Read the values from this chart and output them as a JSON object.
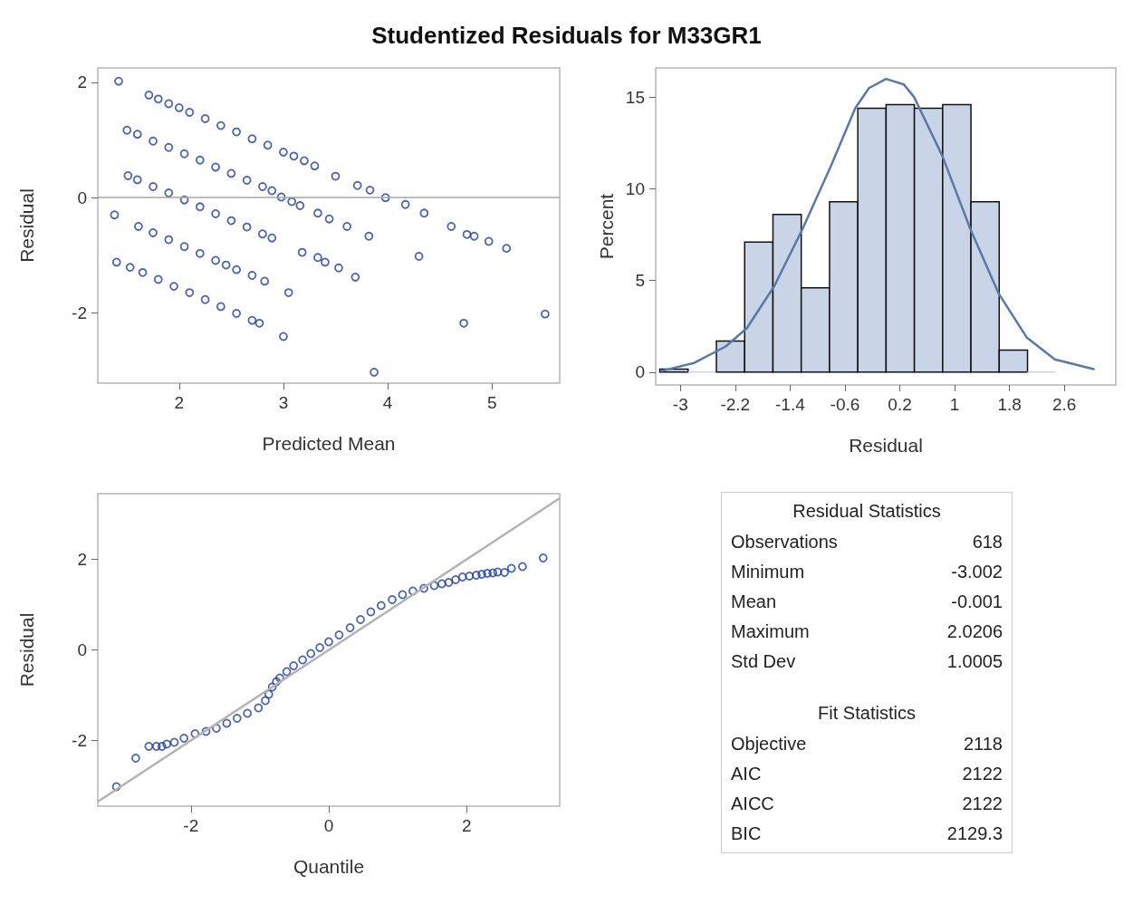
{
  "chart_data": [
    {
      "type": "scatter",
      "title": "Studentized Residuals for M33GR1",
      "xlabel": "Predicted Mean",
      "ylabel": "Residual",
      "color": "#1f3f9a",
      "marker": "circle",
      "grid": false,
      "xlim": [
        1.22,
        5.65
      ],
      "ylim": [
        -3.22,
        2.25
      ],
      "xticks": [
        2,
        3,
        4,
        5
      ],
      "yticks": [
        -2,
        0,
        2
      ],
      "ref_lines": [
        {
          "axis": "y",
          "value": 0,
          "color": "#a6a6a6"
        }
      ],
      "x": [
        1.42,
        1.71,
        1.8,
        1.9,
        2.0,
        2.1,
        2.25,
        2.4,
        2.55,
        2.7,
        2.85,
        3.0,
        3.1,
        3.2,
        3.3,
        3.5,
        3.71,
        3.83,
        3.98,
        4.17,
        4.35,
        4.61,
        4.76,
        4.83,
        4.97,
        5.14,
        1.5,
        1.6,
        1.75,
        1.9,
        2.05,
        2.2,
        2.35,
        2.5,
        2.65,
        2.8,
        2.89,
        2.98,
        3.08,
        3.16,
        3.33,
        3.44,
        3.61,
        3.82,
        4.3,
        1.51,
        1.6,
        1.75,
        1.9,
        2.05,
        2.2,
        2.35,
        2.5,
        2.65,
        2.8,
        2.89,
        3.18,
        3.33,
        3.4,
        3.53,
        3.69,
        4.73,
        5.51,
        3.87,
        1.61,
        1.75,
        1.9,
        2.05,
        2.2,
        2.35,
        2.45,
        2.55,
        2.7,
        2.82,
        3.05,
        1.4,
        1.53,
        1.65,
        1.8,
        1.95,
        2.1,
        2.25,
        2.4,
        2.55,
        2.7,
        2.77,
        3.0,
        1.38
      ],
      "values": [
        2.02,
        1.78,
        1.71,
        1.63,
        1.56,
        1.48,
        1.37,
        1.25,
        1.14,
        1.02,
        0.91,
        0.79,
        0.72,
        0.64,
        0.55,
        0.37,
        0.21,
        0.13,
        0,
        -0.12,
        -0.27,
        -0.5,
        -0.64,
        -0.67,
        -0.76,
        -0.88,
        1.17,
        1.1,
        0.98,
        0.87,
        0.76,
        0.65,
        0.53,
        0.42,
        0.3,
        0.19,
        0.12,
        0.01,
        -0.07,
        -0.14,
        -0.27,
        -0.37,
        -0.5,
        -0.67,
        -1.02,
        0.38,
        0.31,
        0.19,
        0.08,
        -0.04,
        -0.16,
        -0.28,
        -0.4,
        -0.51,
        -0.63,
        -0.7,
        -0.95,
        -1.04,
        -1.12,
        -1.22,
        -1.38,
        -2.18,
        -2.02,
        -3.03,
        -0.5,
        -0.61,
        -0.73,
        -0.85,
        -0.97,
        -1.09,
        -1.17,
        -1.25,
        -1.35,
        -1.45,
        -1.65,
        -1.12,
        -1.21,
        -1.3,
        -1.42,
        -1.54,
        -1.65,
        -1.77,
        -1.89,
        -2.01,
        -2.13,
        -2.18,
        -2.41,
        -0.3
      ]
    },
    {
      "type": "histogram",
      "xlabel": "Residual",
      "ylabel": "Percent",
      "color": "#c9d4e6",
      "grid": false,
      "xlim": [
        -3.36,
        3.35
      ],
      "ylim": [
        -0.7,
        16.6
      ],
      "xticks": [
        -3,
        -2.2,
        -1.4,
        -0.6,
        0.2,
        1,
        1.8,
        2.6
      ],
      "yticks": [
        0,
        5,
        10,
        15
      ],
      "bins": [
        -3.3,
        -2.8875,
        -2.475,
        -2.0625,
        -1.65,
        -1.2375,
        -0.825,
        -0.4125,
        0,
        0.4125,
        0.825,
        1.2375,
        1.65,
        2.0625,
        2.475
      ],
      "values": [
        0.16,
        0,
        1.7,
        7.1,
        8.6,
        4.6,
        9.3,
        14.4,
        14.6,
        14.4,
        14.6,
        9.3,
        1.2,
        0
      ],
      "series": [
        {
          "type": "line",
          "color": "#5a78a8",
          "x": [
            -3.28,
            -2.8,
            -2.34,
            -2.03,
            -1.63,
            -1.22,
            -0.81,
            -0.45,
            -0.25,
            0,
            0.26,
            0.41,
            0.82,
            1.23,
            1.64,
            2.05,
            2.46,
            3.04
          ],
          "values": [
            0.06,
            0.5,
            1.4,
            2.4,
            4.7,
            7.8,
            11.2,
            14.4,
            15.5,
            16.0,
            15.7,
            15.0,
            11.8,
            7.8,
            4.3,
            1.9,
            0.7,
            0.15
          ]
        }
      ]
    },
    {
      "type": "scatter",
      "xlabel": "Quantile",
      "ylabel": "Residual",
      "marker": "circle",
      "grid": false,
      "xlim": [
        -3.35,
        3.35
      ],
      "ylim": [
        -3.45,
        3.45
      ],
      "xticks": [
        -2,
        0,
        2
      ],
      "yticks": [
        -2,
        0,
        2
      ],
      "series": [
        {
          "type": "line",
          "marker": "none",
          "color": "#b3b3b3",
          "x": [
            -3.35,
            3.35
          ],
          "values": [
            -3.35,
            3.35
          ]
        },
        {
          "color": "#1f3f9a",
          "x": [
            -3.08,
            -2.8,
            -2.61,
            -2.5,
            -2.42,
            -2.35,
            -2.24,
            -2.1,
            -1.94,
            -1.78,
            -1.63,
            -1.48,
            -1.33,
            -1.18,
            -1.02,
            -0.92,
            -0.87,
            -0.82,
            -0.76,
            -0.71,
            -0.61,
            -0.51,
            -0.38,
            -0.26,
            -0.13,
            0,
            0.15,
            0.31,
            0.46,
            0.61,
            0.76,
            0.92,
            1.07,
            1.22,
            1.38,
            1.53,
            1.64,
            1.74,
            1.84,
            1.94,
            2.04,
            2.14,
            2.22,
            2.3,
            2.38,
            2.45,
            2.55,
            2.65,
            2.81,
            3.11
          ],
          "values": [
            -3.02,
            -2.39,
            -2.13,
            -2.13,
            -2.13,
            -2.08,
            -2.04,
            -1.95,
            -1.85,
            -1.8,
            -1.73,
            -1.62,
            -1.51,
            -1.4,
            -1.28,
            -1.12,
            -0.98,
            -0.82,
            -0.7,
            -0.62,
            -0.48,
            -0.35,
            -0.22,
            -0.08,
            0.05,
            0.18,
            0.33,
            0.49,
            0.67,
            0.84,
            0.98,
            1.11,
            1.22,
            1.3,
            1.36,
            1.42,
            1.46,
            1.49,
            1.55,
            1.61,
            1.63,
            1.65,
            1.67,
            1.69,
            1.7,
            1.72,
            1.71,
            1.8,
            1.84,
            2.03
          ]
        }
      ]
    },
    {
      "type": "other",
      "title": "Residual Statistics",
      "categories": [
        "Observations",
        "Minimum",
        "Mean",
        "Maximum",
        "Std Dev"
      ],
      "values": [
        618,
        -3.002,
        -0.001,
        2.0206,
        1.0005
      ],
      "data_labels": true
    },
    {
      "type": "other",
      "title": "Fit Statistics",
      "categories": [
        "Objective",
        "AIC",
        "AICC",
        "BIC"
      ],
      "values": [
        2118,
        2122,
        2122,
        2129.3
      ],
      "data_labels": true
    }
  ]
}
